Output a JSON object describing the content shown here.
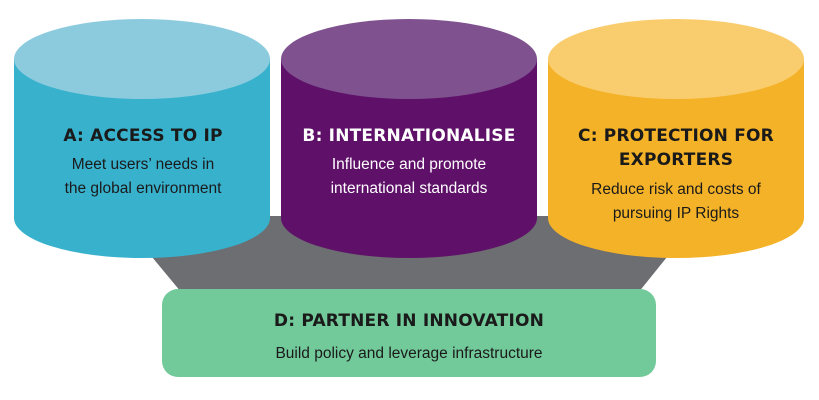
{
  "pillars": [
    {
      "id": "a",
      "title": "A: ACCESS TO IP",
      "description_lines": [
        "Meet users’ needs in",
        "the global environment"
      ],
      "color_body": "#38b1cd",
      "color_top": "#8ccbde"
    },
    {
      "id": "b",
      "title": "B: INTERNATIONALISE",
      "description_lines": [
        "Influence and promote",
        "international standards"
      ],
      "color_body": "#5f1169",
      "color_top": "#7f528f"
    },
    {
      "id": "c",
      "title_lines": [
        "C: PROTECTION FOR",
        "EXPORTERS"
      ],
      "description_lines": [
        "Reduce risk and costs of",
        "pursuing IP Rights"
      ],
      "color_body": "#f4b228",
      "color_top": "#f9cd6d"
    }
  ],
  "foundation": {
    "title": "D: PARTNER IN INNOVATION",
    "description": "Build policy and leverage infrastructure",
    "color_box": "#72c99a",
    "color_connector": "#6d6e71"
  }
}
